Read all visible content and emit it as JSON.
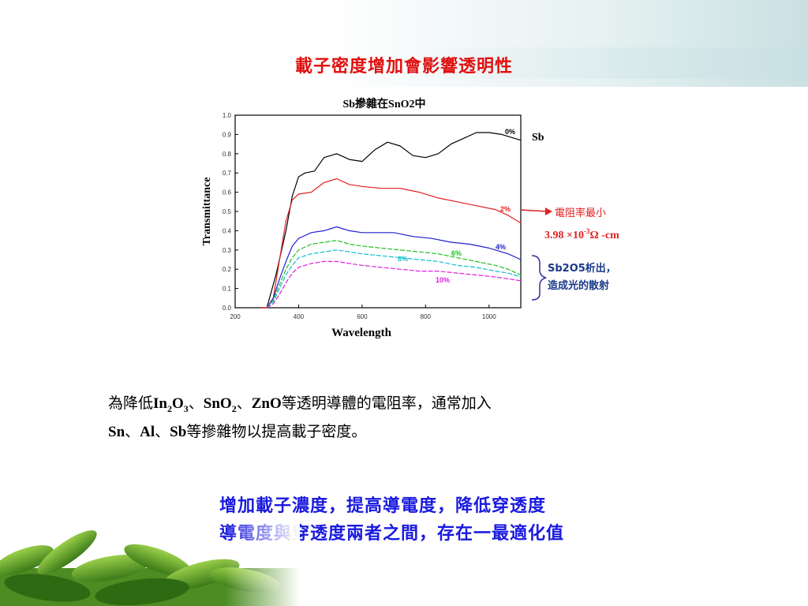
{
  "slide": {
    "title": "載子密度增加會影響透明性",
    "paragraph": {
      "p1": "為降低",
      "in": "In",
      "in_sub": "2",
      "o": "O",
      "o_sub": "3",
      "sep1": "、",
      "sno": "SnO",
      "sno_sub": "2",
      "sep2": "、",
      "zno": "ZnO",
      "p2": "等透明導體的電阻率，通常加入",
      "sn": "Sn",
      "sep3": "、",
      "al": "Al",
      "sep4": "、",
      "sb": "Sb",
      "p3": "等摻雜物以提高載子密度。"
    },
    "conclusion": {
      "line1": "增加載子濃度，提高導電度，降低穿透度",
      "line2": "導電度與穿透度兩者之間，存在一最適化值"
    }
  },
  "chart_data": {
    "type": "line",
    "title": "Sb摻雜在SnO2中",
    "xlabel": "Wavelength",
    "ylabel": "Transmittance",
    "xlim": [
      200,
      1100
    ],
    "ylim": [
      0,
      1.0
    ],
    "x_ticks": [
      "200",
      "400",
      "600",
      "800",
      "1000"
    ],
    "x_tick_values": [
      200,
      400,
      600,
      800,
      1000
    ],
    "y_ticks": [
      "0.0",
      "0.1",
      "0.2",
      "0.3",
      "0.4",
      "0.5",
      "0.6",
      "0.7",
      "0.8",
      "0.9",
      "1.0"
    ],
    "y_tick_values": [
      0,
      0.1,
      0.2,
      0.3,
      0.4,
      0.5,
      0.6,
      0.7,
      0.8,
      0.9,
      1.0
    ],
    "series": [
      {
        "name": "0%",
        "color": "#000000",
        "x": [
          280,
          300,
          330,
          360,
          380,
          400,
          420,
          450,
          480,
          520,
          560,
          600,
          640,
          680,
          720,
          760,
          800,
          840,
          880,
          920,
          960,
          1000,
          1040,
          1080,
          1100
        ],
        "y": [
          0.0,
          0.0,
          0.18,
          0.4,
          0.58,
          0.68,
          0.7,
          0.71,
          0.78,
          0.8,
          0.77,
          0.76,
          0.82,
          0.86,
          0.84,
          0.79,
          0.78,
          0.8,
          0.85,
          0.88,
          0.91,
          0.91,
          0.9,
          0.88,
          0.87
        ]
      },
      {
        "name": "2%",
        "color": "#e02020",
        "x": [
          280,
          300,
          320,
          340,
          360,
          380,
          400,
          440,
          480,
          520,
          560,
          600,
          660,
          720,
          780,
          840,
          900,
          960,
          1020,
          1060,
          1100
        ],
        "y": [
          0.0,
          0.0,
          0.05,
          0.25,
          0.45,
          0.56,
          0.59,
          0.6,
          0.65,
          0.67,
          0.64,
          0.63,
          0.62,
          0.62,
          0.6,
          0.57,
          0.55,
          0.53,
          0.51,
          0.48,
          0.44
        ]
      },
      {
        "name": "4%",
        "color": "#2020d0",
        "x": [
          300,
          320,
          340,
          360,
          380,
          400,
          440,
          480,
          520,
          560,
          600,
          640,
          700,
          760,
          820,
          880,
          940,
          1000,
          1060,
          1100
        ],
        "y": [
          0.0,
          0.05,
          0.15,
          0.24,
          0.32,
          0.36,
          0.39,
          0.4,
          0.42,
          0.4,
          0.39,
          0.39,
          0.39,
          0.37,
          0.36,
          0.34,
          0.33,
          0.31,
          0.28,
          0.25
        ]
      },
      {
        "name": "6%",
        "color": "#20c020",
        "x": [
          300,
          320,
          340,
          360,
          380,
          400,
          440,
          480,
          520,
          560,
          600,
          660,
          720,
          780,
          840,
          900,
          960,
          1020,
          1060,
          1100
        ],
        "y": [
          0.0,
          0.04,
          0.12,
          0.2,
          0.26,
          0.3,
          0.33,
          0.34,
          0.35,
          0.33,
          0.32,
          0.31,
          0.3,
          0.29,
          0.28,
          0.26,
          0.24,
          0.22,
          0.2,
          0.17
        ]
      },
      {
        "name": "8%",
        "color": "#10c0d0",
        "x": [
          300,
          320,
          340,
          360,
          380,
          400,
          440,
          480,
          520,
          560,
          600,
          660,
          720,
          780,
          840,
          900,
          960,
          1020,
          1060,
          1100
        ],
        "y": [
          0.0,
          0.03,
          0.1,
          0.17,
          0.22,
          0.26,
          0.28,
          0.29,
          0.3,
          0.29,
          0.28,
          0.27,
          0.26,
          0.25,
          0.24,
          0.22,
          0.21,
          0.19,
          0.18,
          0.16
        ]
      },
      {
        "name": "10%",
        "color": "#e020e0",
        "x": [
          300,
          320,
          340,
          360,
          380,
          400,
          440,
          480,
          520,
          560,
          600,
          660,
          720,
          780,
          840,
          900,
          960,
          1020,
          1060,
          1100
        ],
        "y": [
          0.0,
          0.02,
          0.07,
          0.13,
          0.18,
          0.21,
          0.23,
          0.24,
          0.24,
          0.23,
          0.22,
          0.21,
          0.2,
          0.19,
          0.19,
          0.18,
          0.17,
          0.16,
          0.15,
          0.14
        ]
      }
    ],
    "annotations": {
      "sb": "Sb",
      "resistivity": "電阻率最小",
      "value_main": "3.98 ×10",
      "value_exp": "-3",
      "value_unit": "Ω -cm",
      "oxide_line1": "Sb2O5析出，",
      "oxide_line2": "造成光的散射"
    }
  }
}
